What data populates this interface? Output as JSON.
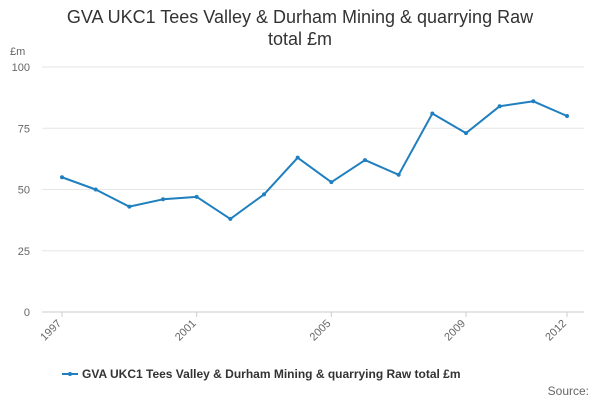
{
  "chart_data": {
    "type": "line",
    "title_lines": [
      "GVA UKC1 Tees Valley & Durham Mining & quarrying Raw",
      "total £m"
    ],
    "ylabel": "£m",
    "xlabel": "",
    "x_tick_labels": [
      "1997",
      "2001",
      "2005",
      "2009",
      "2012"
    ],
    "y_tick_labels": [
      "0",
      "25",
      "50",
      "75",
      "100"
    ],
    "ylim": [
      0,
      100
    ],
    "xlim": [
      1997,
      2012
    ],
    "grid": "horizontal",
    "legend_position": "bottom",
    "x": [
      1997,
      1998,
      1999,
      2000,
      2001,
      2002,
      2003,
      2004,
      2005,
      2006,
      2007,
      2008,
      2009,
      2010,
      2011,
      2012
    ],
    "series": [
      {
        "name": "GVA UKC1 Tees Valley & Durham Mining & quarrying Raw total £m",
        "color": "#1f7fbf",
        "values": [
          55,
          50,
          43,
          46,
          47,
          38,
          48,
          63,
          53,
          62,
          56,
          81,
          73,
          84,
          86,
          80
        ]
      }
    ],
    "source_label": "Source:"
  }
}
